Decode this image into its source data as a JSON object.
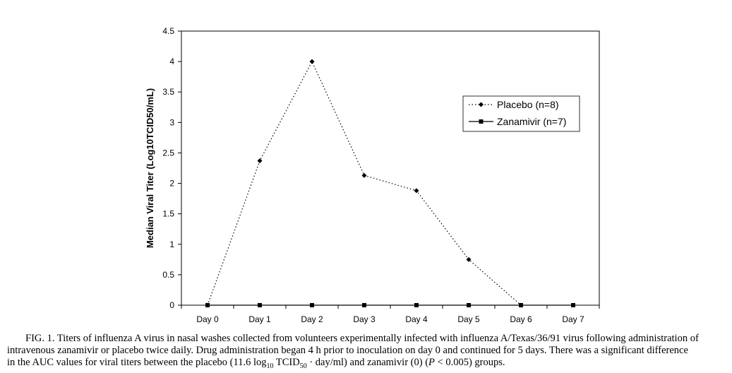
{
  "chart_data": {
    "type": "line",
    "ylabel": "Median Viral Titer (Log10TCID50/mL)",
    "xlabel": "",
    "categories": [
      "Day 0",
      "Day 1",
      "Day 2",
      "Day 3",
      "Day 4",
      "Day 5",
      "Day 6",
      "Day 7"
    ],
    "ylim": [
      0,
      4.5
    ],
    "yticks": [
      "0",
      "0.5",
      "1",
      "1.5",
      "2",
      "2.5",
      "3",
      "3.5",
      "4",
      "4.5"
    ],
    "grid": false,
    "legend_position": "top-right",
    "series": [
      {
        "name": "Placebo (n=8)",
        "values": [
          0,
          2.37,
          4.0,
          2.13,
          1.88,
          0.75,
          0,
          null
        ],
        "line_style": "dotted",
        "marker": "diamond",
        "color": "#000000"
      },
      {
        "name": "Zanamivir (n=7)",
        "values": [
          0,
          0,
          0,
          0,
          0,
          0,
          0,
          0
        ],
        "line_style": "solid",
        "marker": "square",
        "color": "#000000"
      }
    ]
  },
  "caption": {
    "line1": "FIG. 1. Titers of influenza A virus in nasal washes collected from volunteers experimentally infected with influenza A/Texas/36/91 virus following administration of",
    "line2": "intravenous zanamivir or placebo twice daily. Drug administration began 4 h prior to inoculation on day 0 and continued for 5 days. There was a significant difference",
    "line3_a": "in the AUC values for viral titers between the placebo (11.6 log",
    "line3_sub1": "10",
    "line3_b": " TCID",
    "line3_sub2": "50",
    "line3_c": " · day/ml) and zanamivir (0) (",
    "line3_p": "P",
    "line3_d": " < 0.005) groups."
  }
}
